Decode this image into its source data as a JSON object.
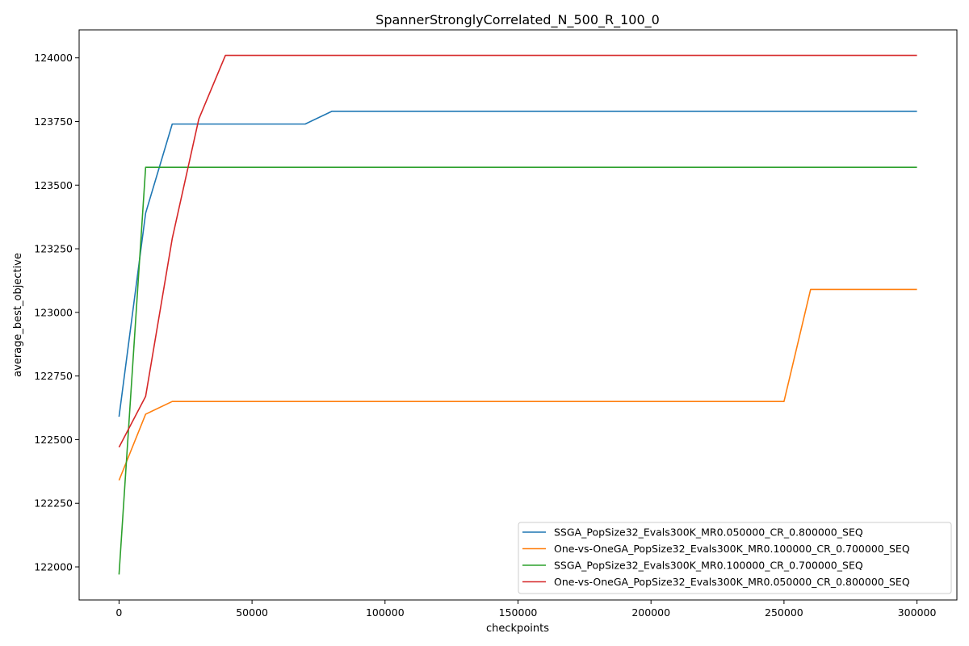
{
  "chart_data": {
    "type": "line",
    "title": "SpannerStronglyCorrelated_N_500_R_100_0",
    "xlabel": "checkpoints",
    "ylabel": "average_best_objective",
    "xlim": [
      -15000,
      315000
    ],
    "ylim": [
      121870,
      124110
    ],
    "xticks": [
      0,
      50000,
      100000,
      150000,
      200000,
      250000,
      300000
    ],
    "yticks": [
      122000,
      122250,
      122500,
      122750,
      123000,
      123250,
      123500,
      123750,
      124000
    ],
    "grid": false,
    "legend_position": "bottom-right",
    "series": [
      {
        "name": "SSGA_PopSize32_Evals300K_MR0.050000_CR_0.800000_SEQ",
        "color": "#1f77b4",
        "x": [
          0,
          10000,
          20000,
          30000,
          40000,
          50000,
          60000,
          70000,
          80000,
          300000
        ],
        "y": [
          122590,
          123390,
          123740,
          123740,
          123740,
          123740,
          123740,
          123740,
          123790,
          123790
        ]
      },
      {
        "name": "One-vs-OneGA_PopSize32_Evals300K_MR0.100000_CR_0.700000_SEQ",
        "color": "#ff7f0e",
        "x": [
          0,
          10000,
          20000,
          250000,
          260000,
          300000
        ],
        "y": [
          122340,
          122600,
          122650,
          122650,
          123090,
          123090
        ]
      },
      {
        "name": "SSGA_PopSize32_Evals300K_MR0.100000_CR_0.700000_SEQ",
        "color": "#2ca02c",
        "x": [
          0,
          10000,
          20000,
          300000
        ],
        "y": [
          121970,
          123570,
          123570,
          123570
        ]
      },
      {
        "name": "One-vs-OneGA_PopSize32_Evals300K_MR0.050000_CR_0.800000_SEQ",
        "color": "#d62728",
        "x": [
          0,
          10000,
          20000,
          30000,
          40000,
          300000
        ],
        "y": [
          122470,
          122670,
          123290,
          123760,
          124010,
          124010
        ]
      }
    ]
  }
}
